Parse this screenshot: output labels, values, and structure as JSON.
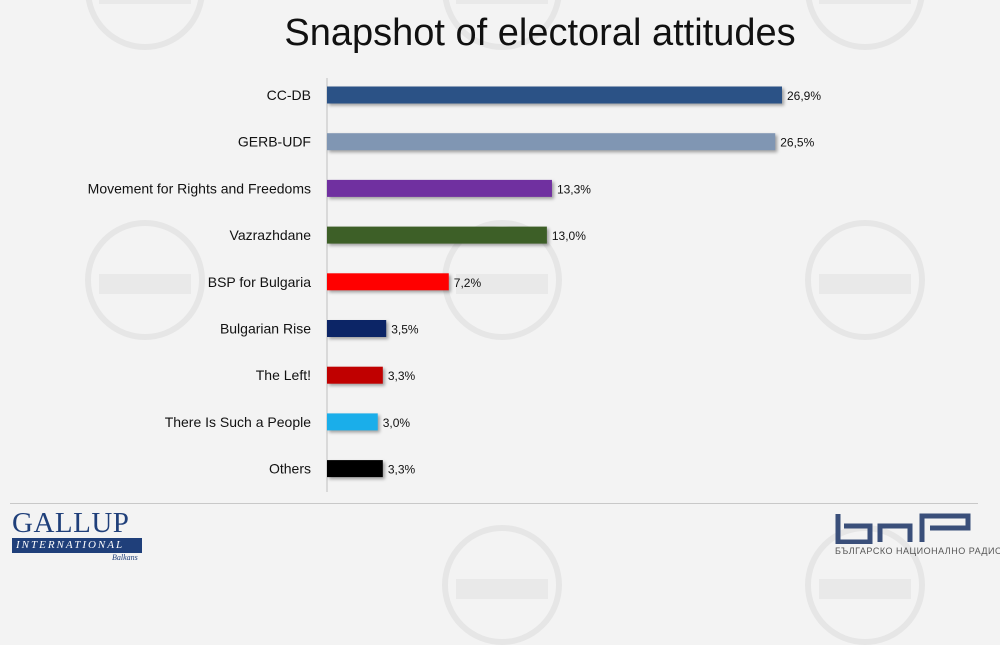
{
  "chart_data": {
    "type": "bar",
    "orientation": "horizontal",
    "title": "Snapshot of electoral attitudes",
    "categories": [
      "CC-DB",
      "GERB-UDF",
      "Movement for Rights and Freedoms",
      "Vazrazhdane",
      "BSP for Bulgaria",
      "Bulgarian Rise",
      "The Left!",
      "There Is Such a People",
      "Others"
    ],
    "values": [
      26.9,
      26.5,
      13.3,
      13.0,
      7.2,
      3.5,
      3.3,
      3.0,
      3.3
    ],
    "value_labels": [
      "26,9%",
      "26,5%",
      "13,3%",
      "13,0%",
      "7,2%",
      "3,5%",
      "3,3%",
      "3,0%",
      "3,3%"
    ],
    "colors": [
      "#2b5286",
      "#8096b3",
      "#7030a0",
      "#3d5f27",
      "#ff0000",
      "#0c2566",
      "#c00000",
      "#1aaeea",
      "#000000"
    ],
    "xlim": [
      0,
      26.9
    ],
    "xlabel": "",
    "ylabel": "",
    "grid": false,
    "legend": "none"
  },
  "logos": {
    "gallup_main": "GALLUP",
    "gallup_band": "INTERNATIONAL",
    "gallup_sub": "Balkans",
    "bnr_sub": "БЪЛГАРСКО НАЦИОНАЛНО РАДИО"
  }
}
